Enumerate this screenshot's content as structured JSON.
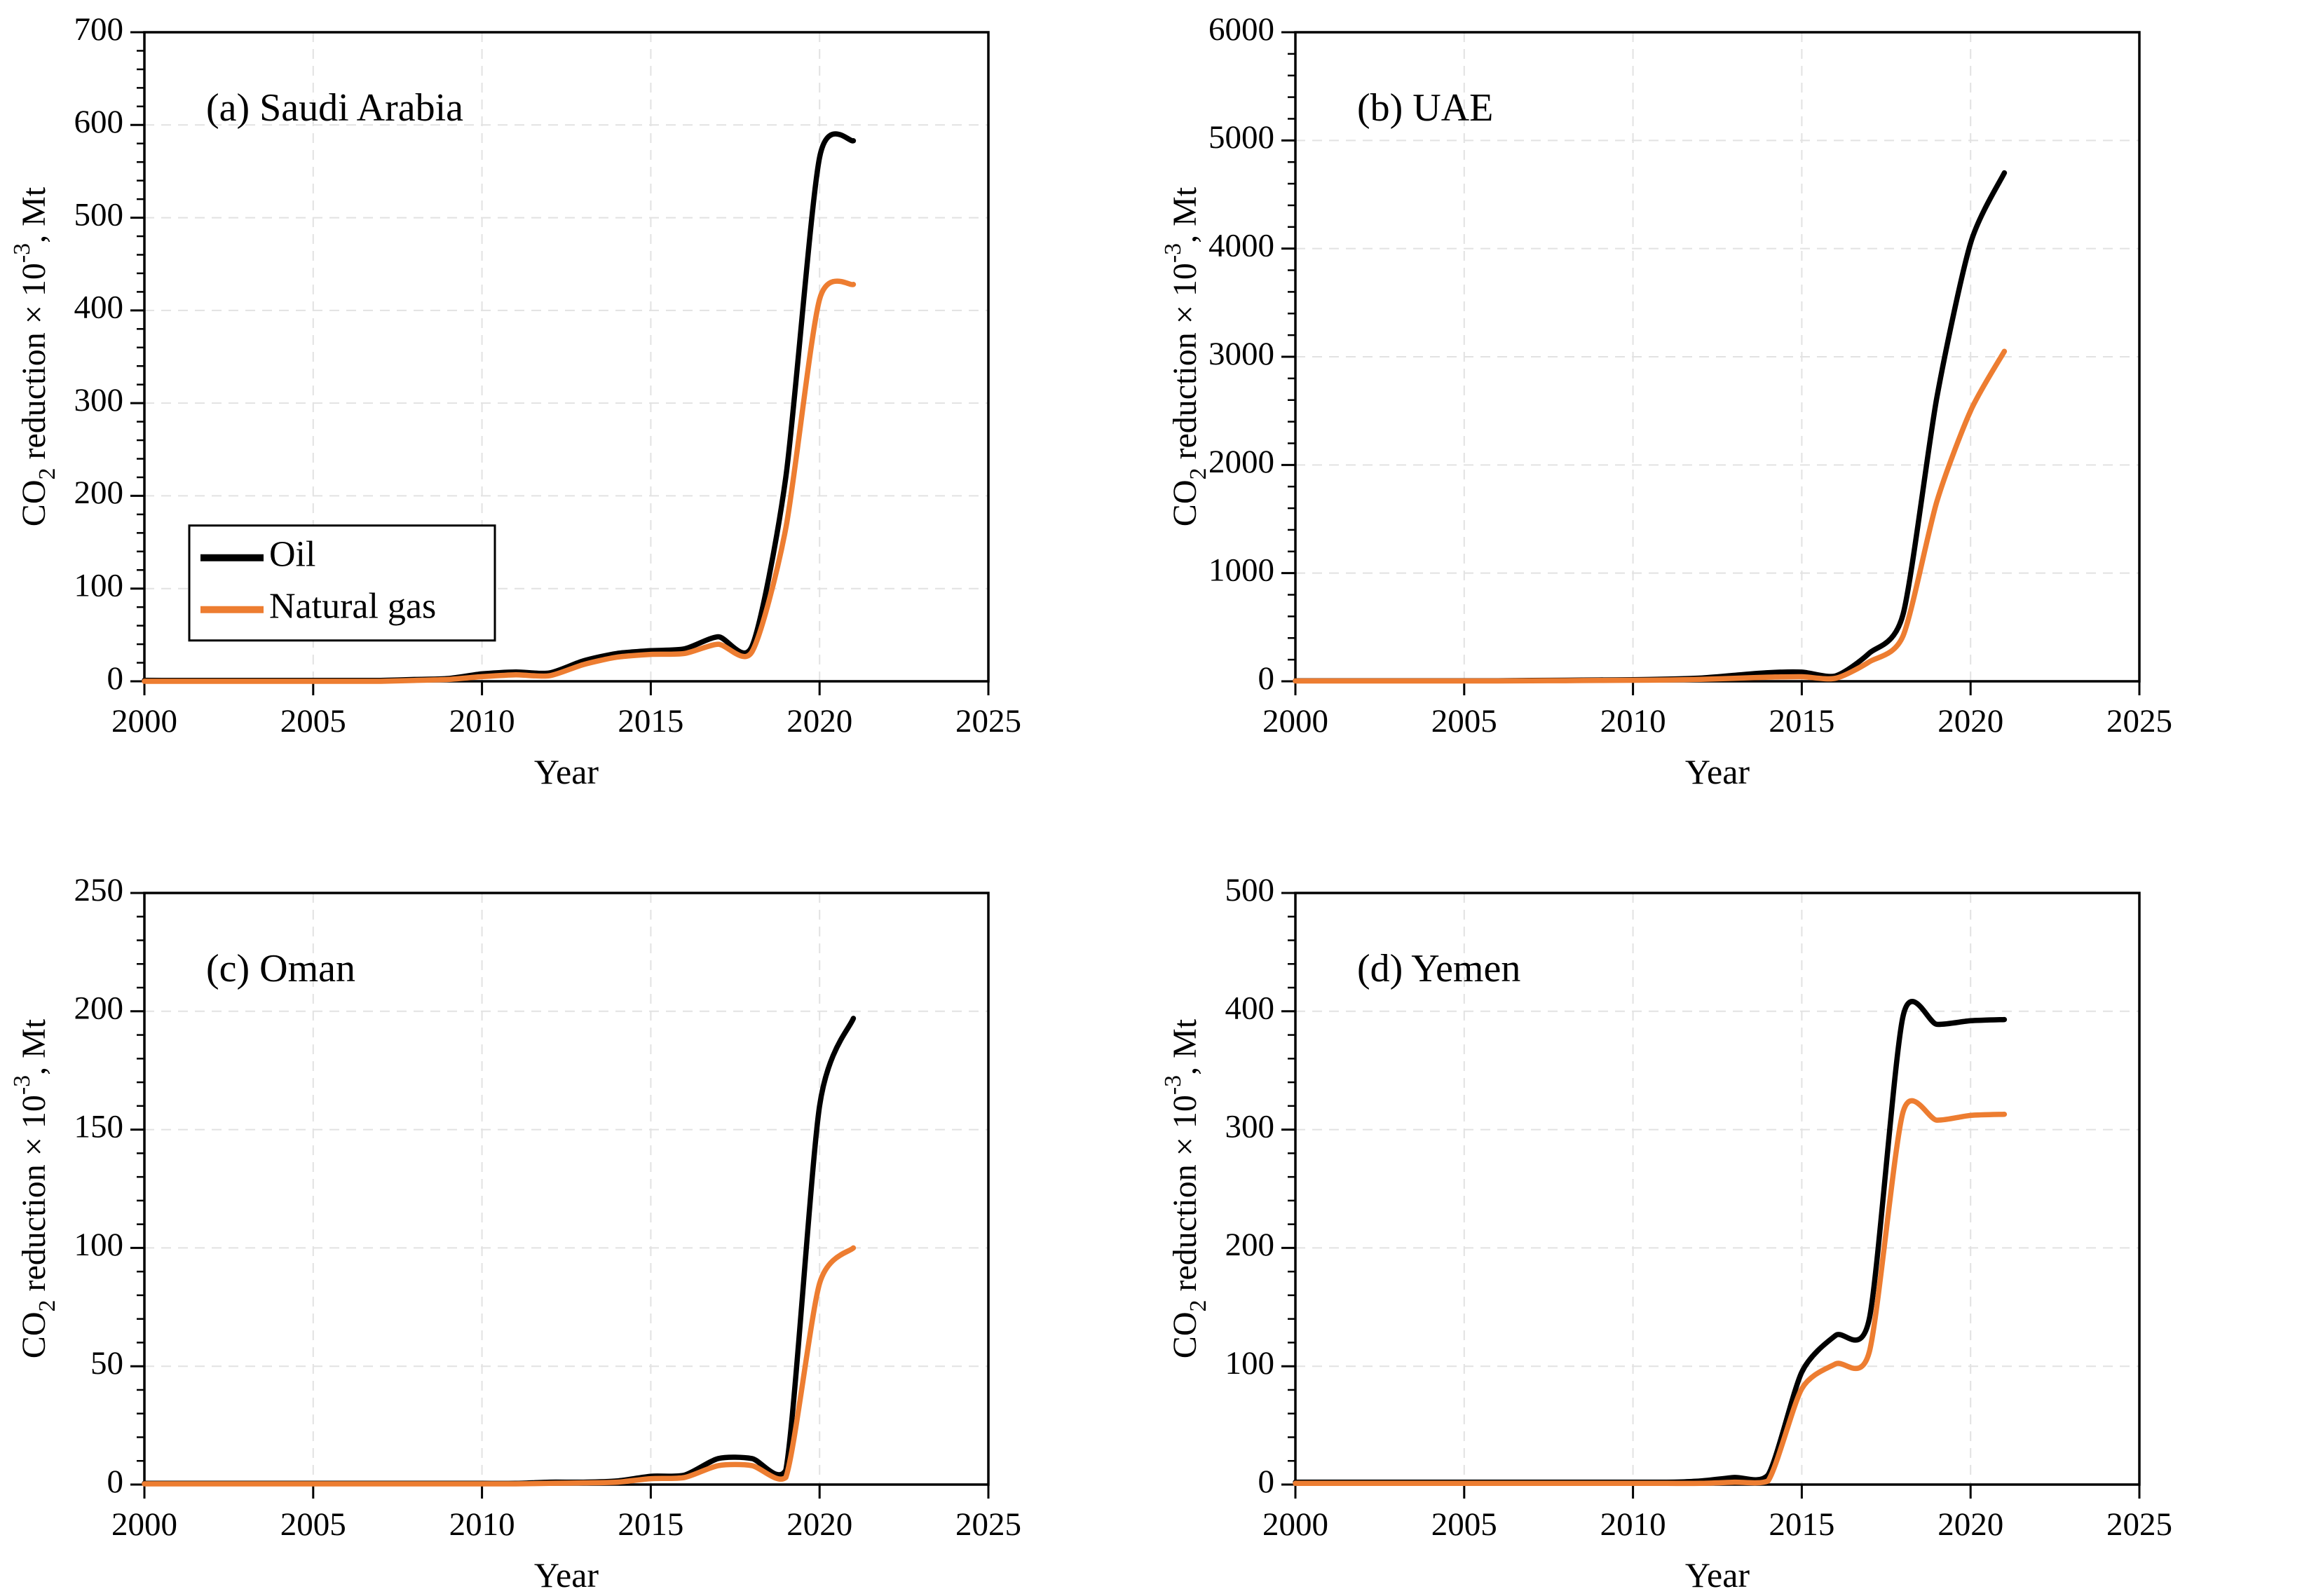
{
  "figure": {
    "xlabel": "Year",
    "ylabel": {
      "pre": "CO",
      "sub": "2",
      "mid": " reduction × 10",
      "sup": "-3",
      "post": ", Mt"
    },
    "legend": {
      "items": [
        {
          "label": "Oil",
          "color": "#000000"
        },
        {
          "label": "Natural gas",
          "color": "#ED7D31"
        }
      ]
    }
  },
  "colors": {
    "oil": "#000000",
    "natural_gas": "#ED7D31",
    "grid": "#E2E2E2",
    "axis": "#000000",
    "background": "#FFFFFF"
  },
  "chart_data": [
    {
      "id": "a",
      "type": "line",
      "title": "(a) Saudi Arabia",
      "xlabel": "Year",
      "xlim": [
        2000,
        2025
      ],
      "xticks": [
        2000,
        2005,
        2010,
        2015,
        2020,
        2025
      ],
      "ylim": [
        0,
        700
      ],
      "yticks": [
        0,
        100,
        200,
        300,
        400,
        500,
        600,
        700
      ],
      "y_minor_step": 20,
      "grid": true,
      "legend": true,
      "legend_position": "inside-lower-left",
      "x": [
        2000,
        2001,
        2002,
        2003,
        2004,
        2005,
        2006,
        2007,
        2008,
        2009,
        2010,
        2011,
        2012,
        2013,
        2014,
        2015,
        2016,
        2017,
        2018,
        2019,
        2020,
        2021
      ],
      "series": [
        {
          "name": "Oil",
          "color": "#000000",
          "values": [
            1,
            1,
            1,
            1,
            1,
            1,
            1,
            1,
            2,
            3,
            8,
            10,
            9,
            22,
            30,
            33,
            35,
            48,
            38,
            220,
            565,
            583
          ]
        },
        {
          "name": "Natural gas",
          "color": "#ED7D31",
          "values": [
            0,
            0,
            0,
            0,
            0,
            0,
            0,
            0,
            1,
            2,
            5,
            7,
            6,
            18,
            26,
            29,
            30,
            40,
            32,
            165,
            412,
            428
          ]
        }
      ]
    },
    {
      "id": "b",
      "type": "line",
      "title": "(b) UAE",
      "xlabel": "Year",
      "xlim": [
        2000,
        2025
      ],
      "xticks": [
        2000,
        2005,
        2010,
        2015,
        2020,
        2025
      ],
      "ylim": [
        0,
        6000
      ],
      "yticks": [
        0,
        1000,
        2000,
        3000,
        4000,
        5000,
        6000
      ],
      "y_minor_step": 200,
      "grid": true,
      "legend": false,
      "x": [
        2000,
        2001,
        2002,
        2003,
        2004,
        2005,
        2006,
        2007,
        2008,
        2009,
        2010,
        2011,
        2012,
        2013,
        2014,
        2015,
        2016,
        2017,
        2018,
        2019,
        2020,
        2021
      ],
      "series": [
        {
          "name": "Oil",
          "color": "#000000",
          "values": [
            5,
            5,
            5,
            5,
            5,
            5,
            5,
            8,
            10,
            12,
            15,
            20,
            30,
            55,
            80,
            85,
            50,
            260,
            620,
            2620,
            4050,
            4700
          ]
        },
        {
          "name": "Natural gas",
          "color": "#ED7D31",
          "values": [
            3,
            3,
            3,
            3,
            3,
            3,
            3,
            5,
            6,
            8,
            10,
            12,
            18,
            28,
            38,
            42,
            28,
            180,
            420,
            1660,
            2500,
            3050
          ]
        }
      ]
    },
    {
      "id": "c",
      "type": "line",
      "title": "(c) Oman",
      "xlabel": "Year",
      "xlim": [
        2000,
        2025
      ],
      "xticks": [
        2000,
        2005,
        2010,
        2015,
        2020,
        2025
      ],
      "ylim": [
        0,
        250
      ],
      "yticks": [
        0,
        50,
        100,
        150,
        200,
        250
      ],
      "y_minor_step": 10,
      "grid": true,
      "legend": false,
      "x": [
        2000,
        2001,
        2002,
        2003,
        2004,
        2005,
        2006,
        2007,
        2008,
        2009,
        2010,
        2011,
        2012,
        2013,
        2014,
        2015,
        2016,
        2017,
        2018,
        2019,
        2020,
        2021
      ],
      "series": [
        {
          "name": "Oil",
          "color": "#000000",
          "values": [
            0.5,
            0.5,
            0.5,
            0.5,
            0.5,
            0.5,
            0.5,
            0.5,
            0.5,
            0.5,
            0.5,
            0.5,
            1,
            1,
            1.5,
            3.5,
            4,
            11,
            11,
            6,
            160,
            197
          ]
        },
        {
          "name": "Natural gas",
          "color": "#ED7D31",
          "values": [
            0.3,
            0.3,
            0.3,
            0.3,
            0.3,
            0.3,
            0.3,
            0.3,
            0.3,
            0.3,
            0.3,
            0.3,
            0.5,
            0.7,
            1,
            2.5,
            3,
            8,
            8,
            3,
            85,
            100
          ]
        }
      ]
    },
    {
      "id": "d",
      "type": "line",
      "title": "(d) Yemen",
      "xlabel": "Year",
      "xlim": [
        2000,
        2025
      ],
      "xticks": [
        2000,
        2005,
        2010,
        2015,
        2020,
        2025
      ],
      "ylim": [
        0,
        500
      ],
      "yticks": [
        0,
        100,
        200,
        300,
        400,
        500
      ],
      "y_minor_step": 20,
      "grid": true,
      "legend": false,
      "x": [
        2000,
        2001,
        2002,
        2003,
        2004,
        2005,
        2006,
        2007,
        2008,
        2009,
        2010,
        2011,
        2012,
        2013,
        2014,
        2015,
        2016,
        2017,
        2018,
        2019,
        2020,
        2021
      ],
      "series": [
        {
          "name": "Oil",
          "color": "#000000",
          "values": [
            2,
            2,
            2,
            2,
            2,
            2,
            2,
            2,
            2,
            2,
            2,
            2,
            3,
            6,
            8,
            95,
            126,
            140,
            396,
            389,
            392,
            393
          ]
        },
        {
          "name": "Natural gas",
          "color": "#ED7D31",
          "values": [
            1,
            1,
            1,
            1,
            1,
            1,
            1,
            1,
            1,
            1,
            1,
            1,
            1,
            2,
            3,
            81,
            102,
            112,
            315,
            308,
            312,
            313
          ]
        }
      ]
    }
  ]
}
